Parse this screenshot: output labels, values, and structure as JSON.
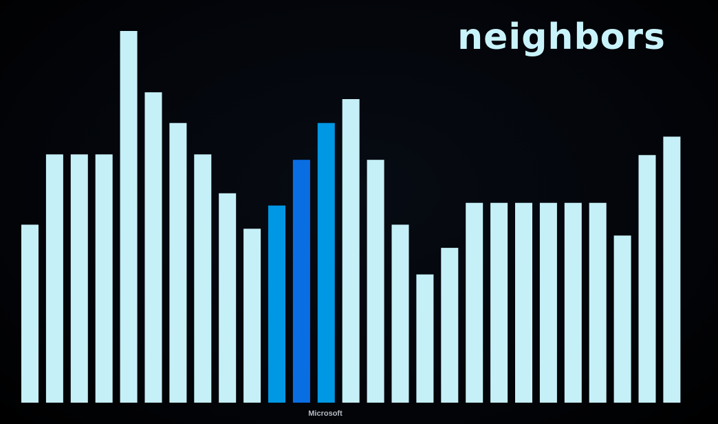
{
  "title": "neighbors",
  "brand": "Microsoft",
  "colors": {
    "background": "#000000",
    "bar_default": "#c6f0f8",
    "bar_neighbor": "#0098e4",
    "bar_selected": "#0a6ee3",
    "title": "#c9f3fb"
  },
  "chart_data": {
    "type": "bar",
    "title": "neighbors",
    "xlabel": "",
    "ylabel": "",
    "axes_visible": false,
    "grid": false,
    "ylim": [
      0,
      550
    ],
    "values": [
      261,
      364,
      364,
      364,
      545,
      455,
      410,
      364,
      307,
      255,
      289,
      356,
      410,
      445,
      356,
      261,
      188,
      227,
      293,
      293,
      293,
      293,
      293,
      293,
      245,
      363,
      390
    ],
    "highlights": {
      "selected": [
        11
      ],
      "neighbors": [
        10,
        12
      ]
    }
  }
}
